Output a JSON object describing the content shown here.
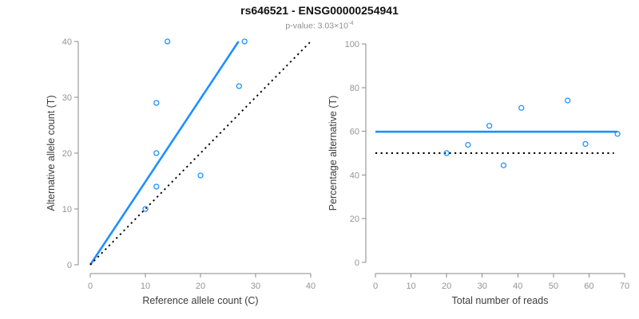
{
  "header": {
    "title": "rs646521 - ENSG00000254941",
    "subtitle_prefix": "p-value: 3.03×10",
    "subtitle_exponent": "-4"
  },
  "colors": {
    "accent_blue": "#1E90FF",
    "dotted_line_black": "#000000",
    "axis_gray": "#8a8a8a",
    "tick_label_gray": "#949494",
    "axis_title_dark": "#3d3d3d",
    "title_black": "#111111",
    "subtitle_gray": "#8f8f8f"
  },
  "chart_data": [
    {
      "type": "scatter",
      "title": "",
      "xlabel": "Reference allele count (C)",
      "ylabel": "Alternative allele count (T)",
      "xlim": [
        0,
        40
      ],
      "ylim": [
        0,
        40
      ],
      "xticks": [
        0,
        10,
        20,
        30,
        40
      ],
      "yticks": [
        0,
        10,
        20,
        30,
        40
      ],
      "grid": false,
      "legend": "none",
      "points": [
        [
          10,
          10
        ],
        [
          12,
          14
        ],
        [
          12,
          20
        ],
        [
          12,
          29
        ],
        [
          14,
          40
        ],
        [
          20,
          16
        ],
        [
          27,
          32
        ],
        [
          28,
          40
        ]
      ],
      "lines": [
        {
          "name": "fit-ratio-line",
          "style": "solid",
          "color": "#1E90FF",
          "x": [
            0,
            26.9
          ],
          "y": [
            0,
            40
          ]
        },
        {
          "name": "identity-line",
          "style": "dotted",
          "color": "#000000",
          "x": [
            0,
            40
          ],
          "y": [
            0,
            40
          ]
        }
      ]
    },
    {
      "type": "scatter",
      "title": "",
      "xlabel": "Total number of reads",
      "ylabel": "Percentage alternative (T)",
      "xlim": [
        0,
        70
      ],
      "ylim": [
        0,
        100
      ],
      "xticks": [
        0,
        10,
        20,
        30,
        40,
        50,
        60,
        70
      ],
      "yticks": [
        0,
        20,
        40,
        60,
        80,
        100
      ],
      "grid": false,
      "legend": "none",
      "points": [
        [
          20,
          50.0
        ],
        [
          26,
          53.8
        ],
        [
          32,
          62.5
        ],
        [
          36,
          44.4
        ],
        [
          41,
          70.7
        ],
        [
          54,
          74.1
        ],
        [
          59,
          54.2
        ],
        [
          68,
          58.8
        ]
      ],
      "lines": [
        {
          "name": "mean-percentage-line",
          "style": "solid",
          "color": "#1E90FF",
          "x": [
            0,
            68
          ],
          "y": [
            59.8,
            59.8
          ]
        },
        {
          "name": "fifty-percent-reference-line",
          "style": "dotted",
          "color": "#000000",
          "x": [
            0,
            67
          ],
          "y": [
            50,
            50
          ]
        }
      ]
    }
  ]
}
